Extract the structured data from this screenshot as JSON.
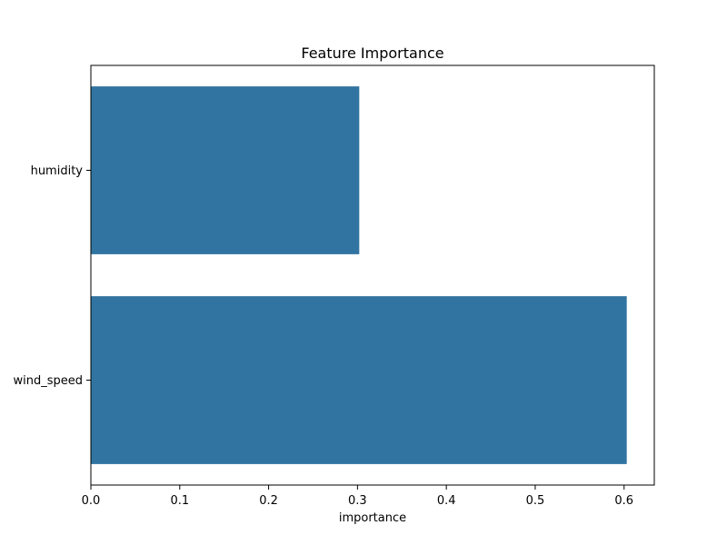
{
  "chart_data": {
    "type": "bar",
    "orientation": "horizontal",
    "title": "Feature Importance",
    "xlabel": "importance",
    "ylabel": "",
    "categories": [
      "humidity",
      "wind_speed"
    ],
    "values": [
      0.302,
      0.603
    ],
    "xlim": [
      0,
      0.634
    ],
    "xticks": [
      0.0,
      0.1,
      0.2,
      0.3,
      0.4,
      0.5,
      0.6
    ],
    "xtick_labels": [
      "0.0",
      "0.1",
      "0.2",
      "0.3",
      "0.4",
      "0.5",
      "0.6"
    ],
    "grid": false,
    "legend": "none",
    "bar_color": "#3274a1"
  }
}
